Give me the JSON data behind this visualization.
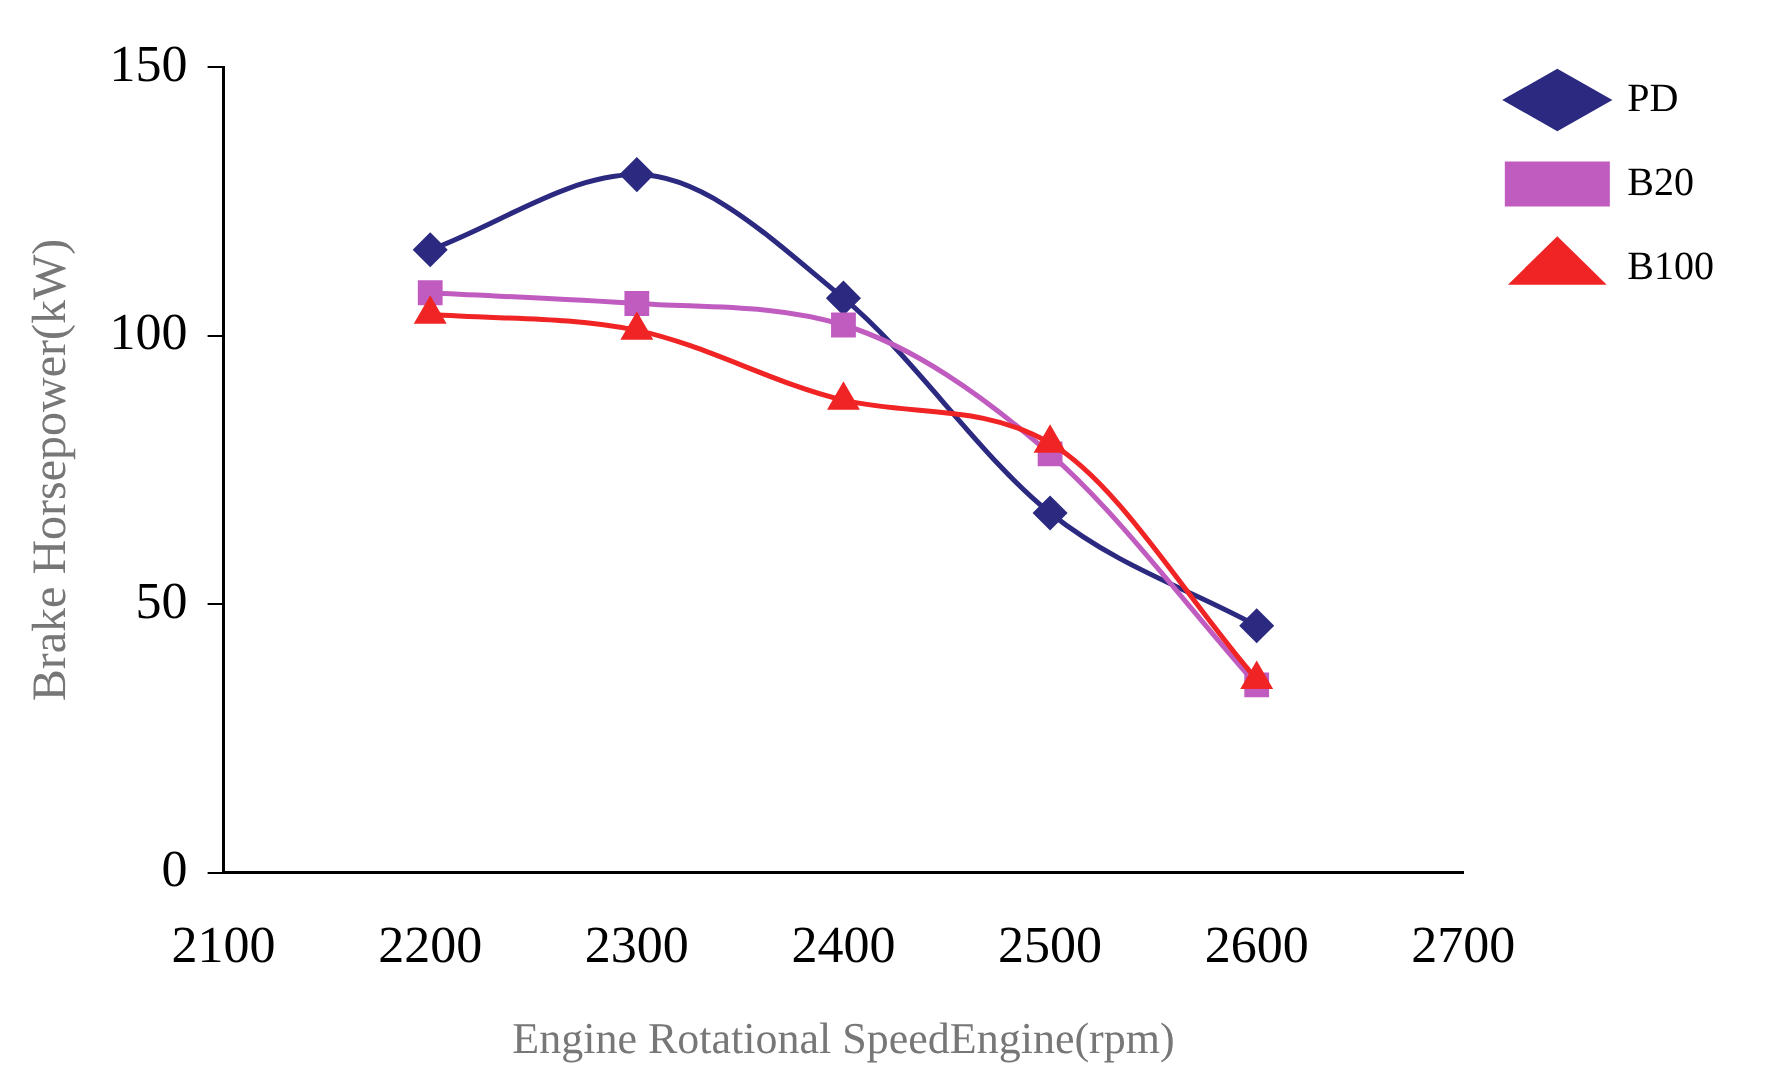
{
  "chart_data": {
    "type": "line",
    "xlabel": "Engine Rotational SpeedEngine(rpm)",
    "ylabel": "Brake Horsepower(kW)",
    "x": [
      2200,
      2300,
      2400,
      2500,
      2600
    ],
    "xlim": [
      2100,
      2700
    ],
    "xticks": [
      2100,
      2200,
      2300,
      2400,
      2500,
      2600,
      2700
    ],
    "ylim": [
      0,
      150
    ],
    "yticks": [
      0,
      50,
      100,
      150
    ],
    "grid": false,
    "legend": "top right",
    "series": [
      {
        "name": "PD",
        "color": "#2b2a80",
        "marker": "diamond",
        "values": [
          116,
          130,
          107,
          67,
          46
        ]
      },
      {
        "name": "B20",
        "color": "#c05cc0",
        "marker": "square",
        "values": [
          108,
          106,
          102,
          78,
          35
        ]
      },
      {
        "name": "B100",
        "color": "#f02424",
        "marker": "triangle",
        "values": [
          104,
          101,
          88,
          80,
          36
        ]
      }
    ]
  }
}
